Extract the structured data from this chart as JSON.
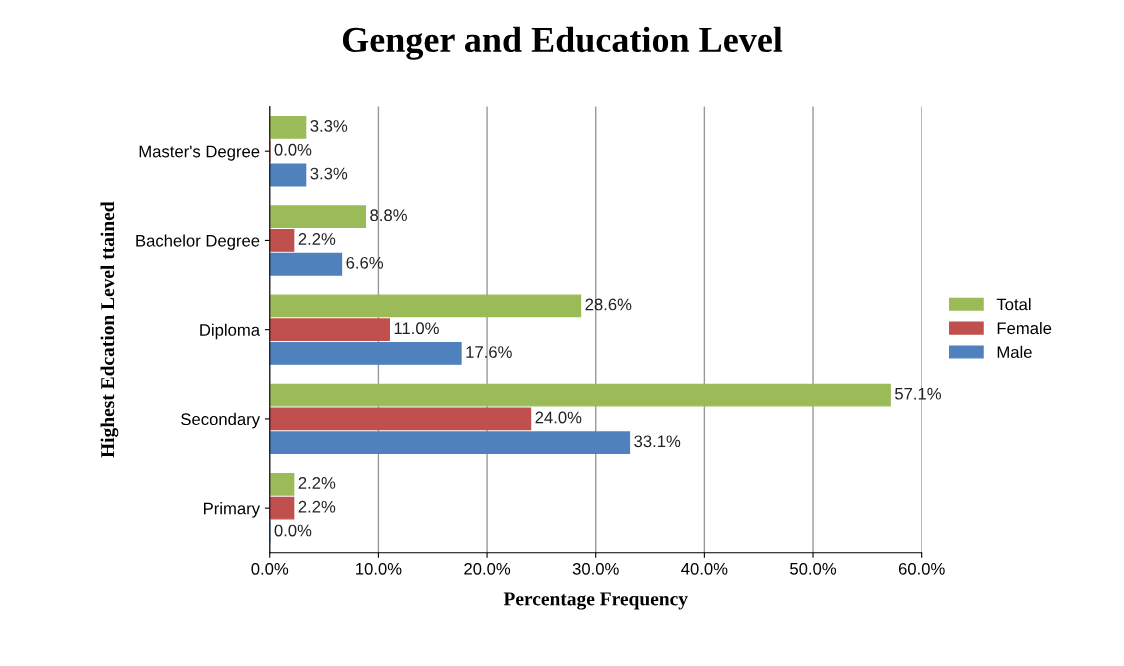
{
  "chart_data": {
    "type": "bar",
    "orientation": "horizontal",
    "title": "Genger and Education Level",
    "xlabel": "Percentage Frequency",
    "ylabel": "Highest Edcation Level ttained",
    "categories": [
      "Master's Degree",
      "Bachelor Degree",
      "Diploma",
      "Secondary",
      "Primary"
    ],
    "series": [
      {
        "name": "Male",
        "color": "#4f81bd",
        "values": [
          3.3,
          6.6,
          17.6,
          33.1,
          0.0
        ],
        "value_labels": [
          "3.3%",
          "6.6%",
          "17.6%",
          "33.1%",
          "0.0%"
        ]
      },
      {
        "name": "Female",
        "color": "#c0504d",
        "values": [
          0.0,
          2.2,
          11.0,
          24.0,
          2.2
        ],
        "value_labels": [
          "0.0%",
          "2.2%",
          "11.0%",
          "24.0%",
          "2.2%"
        ]
      },
      {
        "name": "Total",
        "color": "#9bbb59",
        "values": [
          3.3,
          8.8,
          28.6,
          57.1,
          2.2
        ],
        "value_labels": [
          "3.3%",
          "8.8%",
          "28.6%",
          "57.1%",
          "2.2%"
        ]
      }
    ],
    "xlim": [
      0,
      60
    ],
    "xticks": [
      {
        "value": 0,
        "label": "0.0%"
      },
      {
        "value": 10,
        "label": "10.0%"
      },
      {
        "value": 20,
        "label": "20.0%"
      },
      {
        "value": 30,
        "label": "30.0%"
      },
      {
        "value": 40,
        "label": "40.0%"
      },
      {
        "value": 50,
        "label": "50.0%"
      },
      {
        "value": 60,
        "label": "60.0%"
      }
    ],
    "grid": "x",
    "legend": "right"
  }
}
